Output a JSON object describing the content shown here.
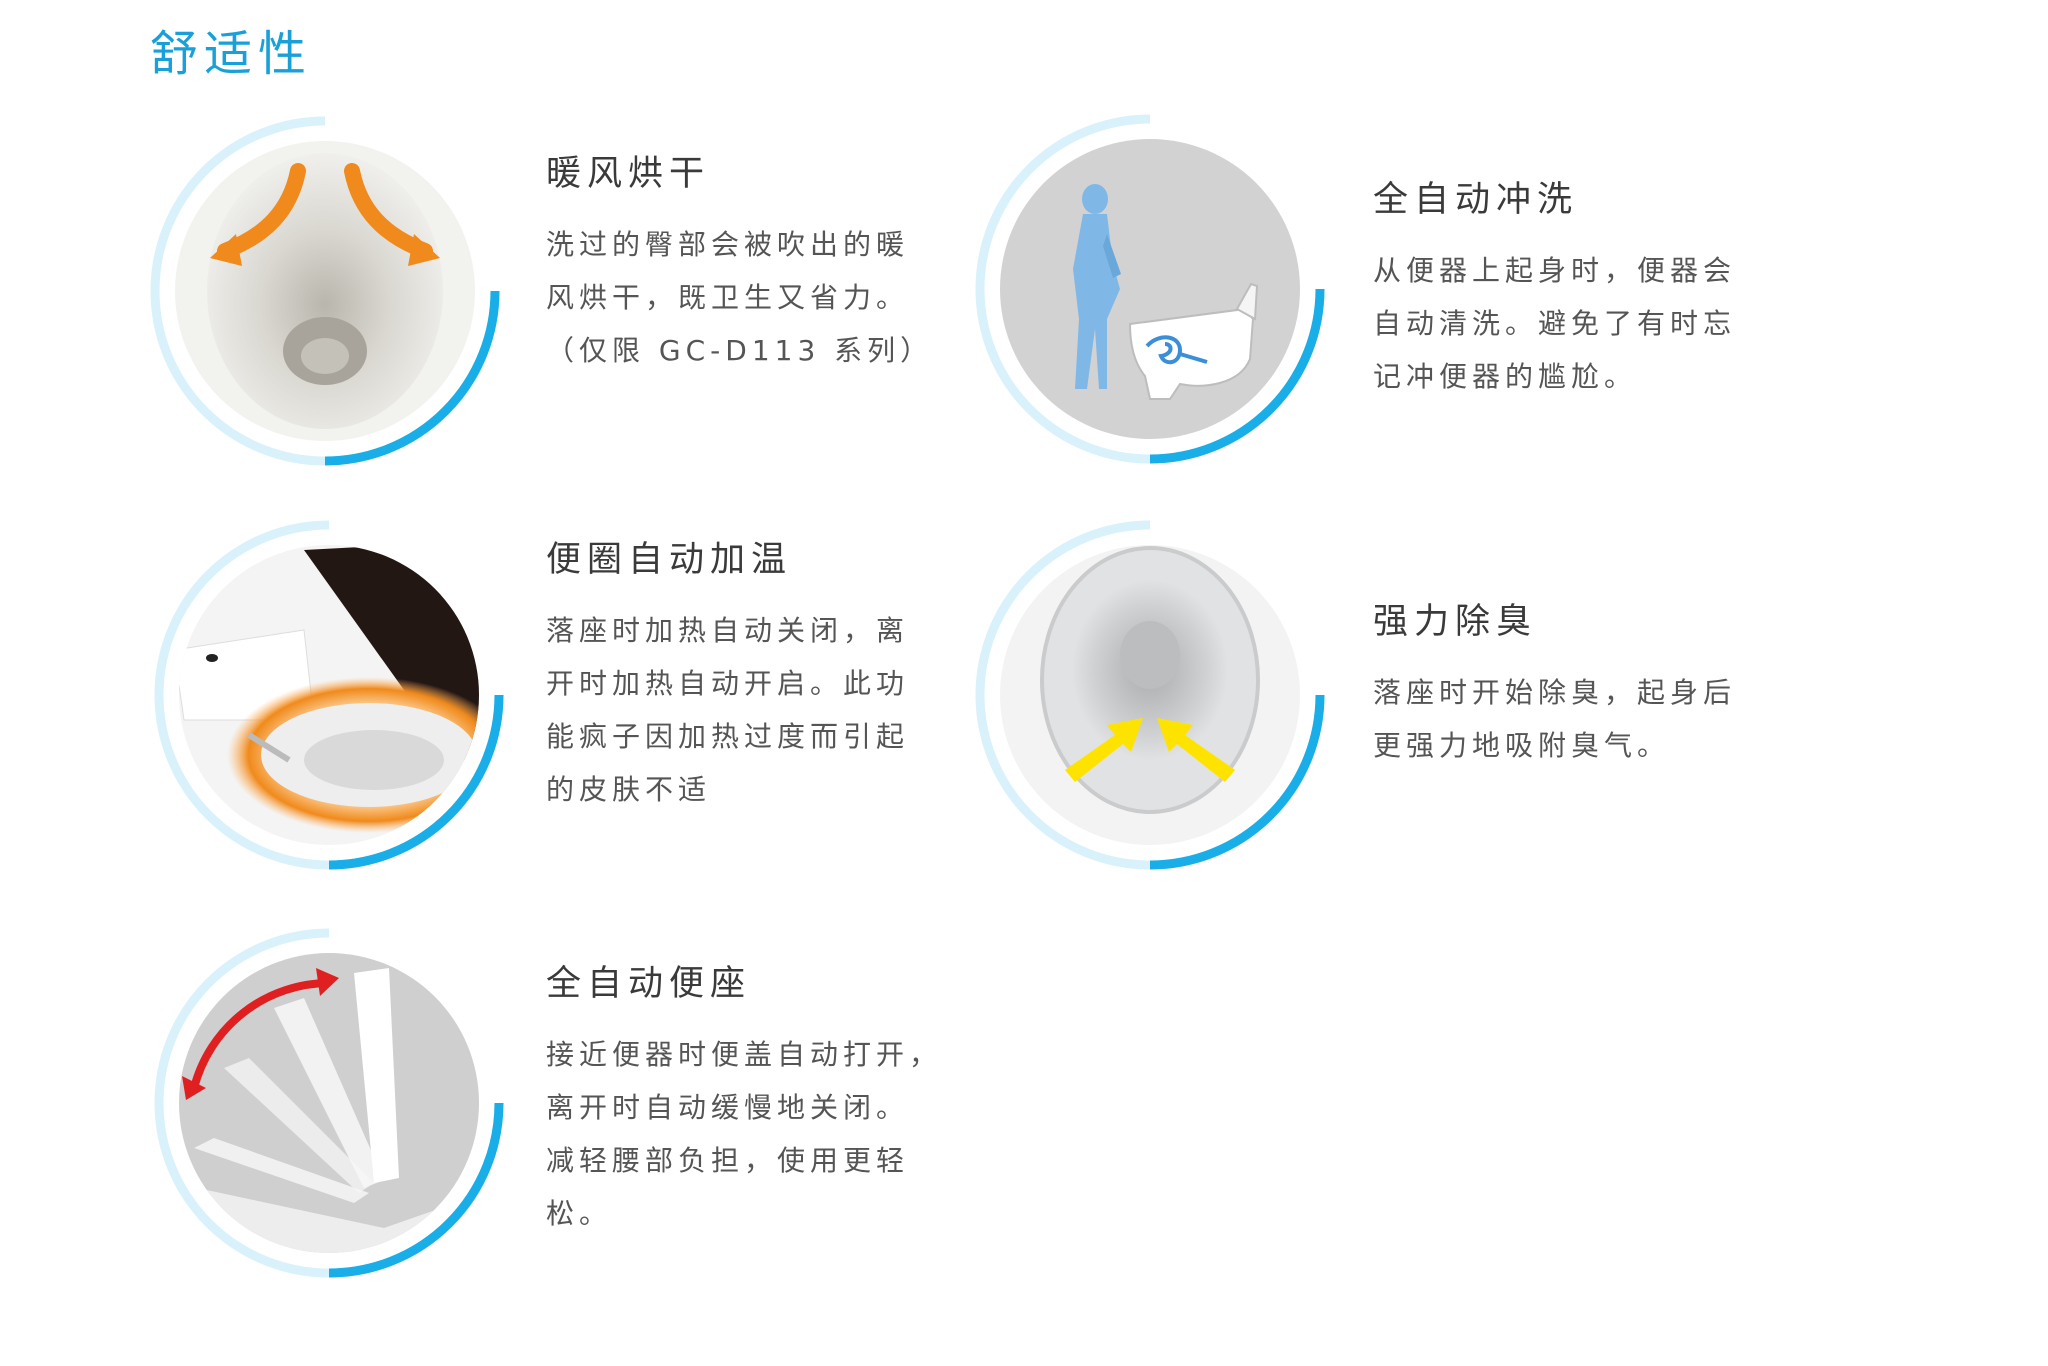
{
  "page_title": "舒适性",
  "colors": {
    "accent": "#1aa0d8",
    "ring_light": "#cdeefa",
    "ring_dark": "#19aee8",
    "arrow_orange": "#f08a1c",
    "arrow_yellow": "#ffe300",
    "arrow_red": "#e02020"
  },
  "features": [
    {
      "id": "warm-air-dry",
      "title": "暖风烘干",
      "lines": [
        "洗过的臀部会被吹出的暖",
        "风烘干，既卫生又省力。",
        "（仅限 GC-D113 系列）"
      ],
      "icon": "warm-air-bowl-icon"
    },
    {
      "id": "auto-flush",
      "title": "全自动冲洗",
      "lines": [
        "从便器上起身时，便器会",
        "自动清洗。避免了有时忘",
        "记冲便器的尴尬。"
      ],
      "icon": "person-standing-toilet-icon"
    },
    {
      "id": "seat-heating",
      "title": "便圈自动加温",
      "lines": [
        "落座时加热自动关闭，离",
        "开时加热自动开启。此功",
        "能疯子因加热过度而引起",
        "的皮肤不适"
      ],
      "icon": "heated-seat-icon"
    },
    {
      "id": "deodorize",
      "title": "强力除臭",
      "lines": [
        "落座时开始除臭，起身后",
        "更强力地吸附臭气。"
      ],
      "icon": "deodorize-bowl-icon"
    },
    {
      "id": "auto-seat",
      "title": "全自动便座",
      "lines": [
        "接近便器时便盖自动打开，",
        "离开时自动缓慢地关闭。",
        "减轻腰部负担，使用更轻",
        "松。"
      ],
      "icon": "auto-lid-icon"
    }
  ]
}
